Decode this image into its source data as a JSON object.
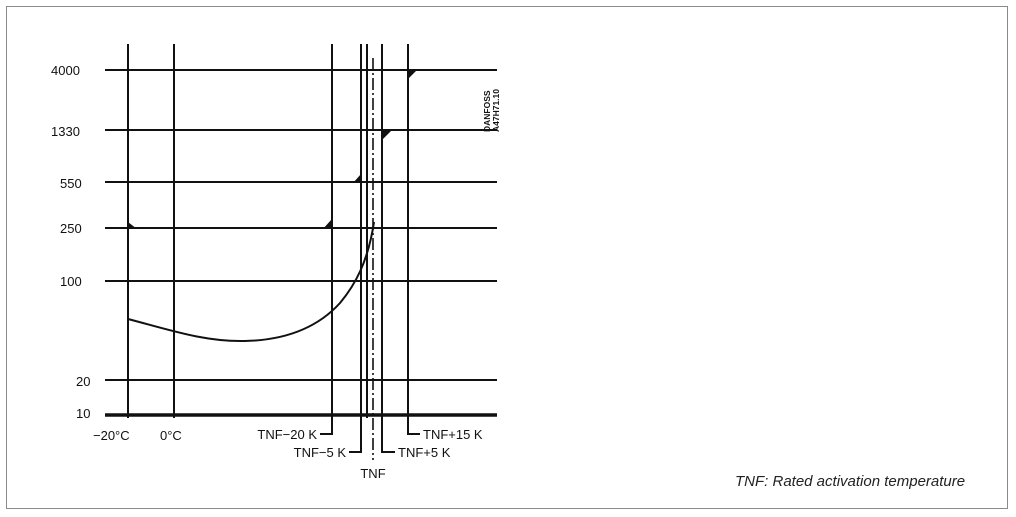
{
  "diagram": {
    "y_ticks": [
      "4000",
      "1330",
      "550",
      "250",
      "100",
      "20",
      "10"
    ],
    "x_labels": {
      "minus20": "−20°C",
      "zero": "0°C",
      "tnf_minus20": "TNF−20 K",
      "tnf_minus5": "TNF−5 K",
      "tnf": "TNF",
      "tnf_plus5": "TNF+5 K",
      "tnf_plus15": "TNF+15 K"
    },
    "stamp": [
      "DANFOSS",
      "A47H71.10"
    ],
    "caption": "TNF: Rated activation temperature",
    "line_color": "#111111"
  }
}
